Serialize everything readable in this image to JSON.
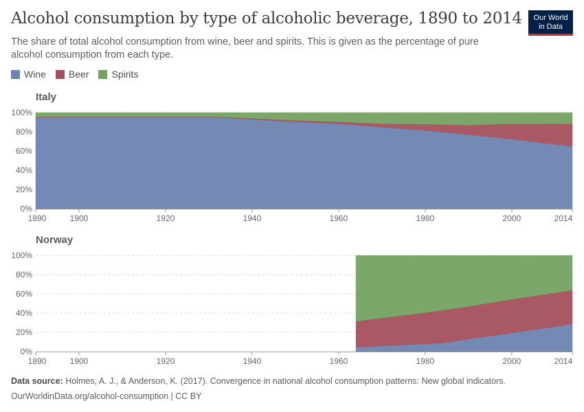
{
  "header": {
    "title": "Alcohol consumption by type of alcoholic beverage, 1890 to 2014",
    "subtitle": "The share of total alcohol consumption from wine, beer and spirits. This is given as the percentage of pure alcohol consumption from each type."
  },
  "logo": {
    "line1": "Our World",
    "line2": "in Data"
  },
  "legend": [
    {
      "label": "Wine",
      "color": "#6d83b0"
    },
    {
      "label": "Beer",
      "color": "#a4505c"
    },
    {
      "label": "Spirits",
      "color": "#75a262"
    }
  ],
  "footer": {
    "source_label": "Data source:",
    "source_text": "Holmes, A. J., & Anderson, K. (2017). Convergence in national alcohol consumption patterns: New global indicators.",
    "url": "OurWorldinData.org/alcohol-consumption | CC BY"
  },
  "chart_data": [
    {
      "type": "area",
      "stacked": true,
      "title": "Italy",
      "xlim": [
        1890,
        2014
      ],
      "ylim": [
        0,
        100
      ],
      "xticks": [
        "1890",
        "1900",
        "1920",
        "1940",
        "1960",
        "1980",
        "2000",
        "2014"
      ],
      "yticks": [
        "0%",
        "20%",
        "40%",
        "60%",
        "80%",
        "100%"
      ],
      "x": [
        1890,
        1900,
        1910,
        1920,
        1930,
        1940,
        1950,
        1960,
        1970,
        1980,
        1990,
        2000,
        2010,
        2014
      ],
      "series": [
        {
          "name": "Wine",
          "values": [
            95,
            95.5,
            95.5,
            95.5,
            95.5,
            93,
            90.5,
            88.5,
            85,
            81.5,
            77,
            72.5,
            67,
            65
          ]
        },
        {
          "name": "Beer",
          "values": [
            0.5,
            0.5,
            0.5,
            0.5,
            0.5,
            1,
            1.5,
            2,
            3.5,
            6.5,
            10,
            16,
            21.5,
            23.5
          ]
        },
        {
          "name": "Spirits",
          "values": [
            4.5,
            4,
            4,
            4,
            4,
            6,
            8,
            9.5,
            11.5,
            12,
            13,
            11.5,
            11.5,
            11.5
          ]
        }
      ]
    },
    {
      "type": "area",
      "stacked": true,
      "title": "Norway",
      "xlim": [
        1890,
        2014
      ],
      "ylim": [
        0,
        100
      ],
      "xticks": [
        "1890",
        "1900",
        "1920",
        "1940",
        "1960",
        "1980",
        "2000",
        "2014"
      ],
      "yticks": [
        "0%",
        "20%",
        "40%",
        "60%",
        "80%",
        "100%"
      ],
      "x": [
        1964,
        1970,
        1980,
        1984,
        1990,
        2000,
        2010,
        2014
      ],
      "series": [
        {
          "name": "Wine",
          "values": [
            4.5,
            6,
            8,
            9,
            13,
            19.5,
            26,
            29
          ]
        },
        {
          "name": "Beer",
          "values": [
            27,
            29,
            32.5,
            34,
            34,
            35,
            35,
            35
          ]
        },
        {
          "name": "Spirits",
          "values": [
            68.5,
            65,
            59.5,
            57,
            53,
            45.5,
            39,
            36
          ]
        }
      ]
    }
  ]
}
